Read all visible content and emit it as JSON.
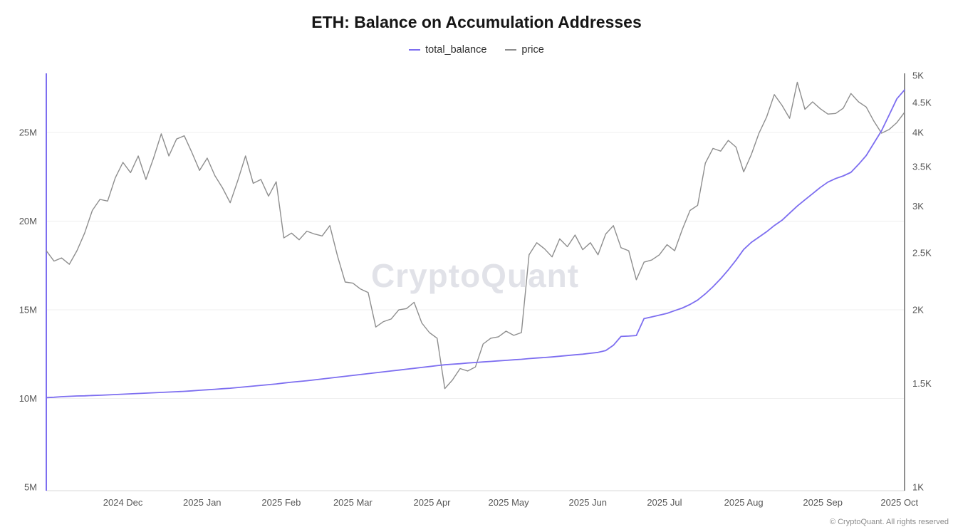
{
  "chart_data": {
    "type": "line",
    "title": "ETH: Balance on Accumulation Addresses",
    "watermark": "CryptoQuant",
    "footer": "© CryptoQuant. All rights reserved",
    "legend_position": "top-center",
    "grid": "horizontal-only",
    "x_start_date": "2024-11-01",
    "x_interval_days": 3,
    "x_ticks": [
      {
        "date": "2024-12-01",
        "label": "2024 Dec"
      },
      {
        "date": "2025-01-01",
        "label": "2025 Jan"
      },
      {
        "date": "2025-02-01",
        "label": "2025 Feb"
      },
      {
        "date": "2025-03-01",
        "label": "2025 Mar"
      },
      {
        "date": "2025-04-01",
        "label": "2025 Apr"
      },
      {
        "date": "2025-05-01",
        "label": "2025 May"
      },
      {
        "date": "2025-06-01",
        "label": "2025 Jun"
      },
      {
        "date": "2025-07-01",
        "label": "2025 Jul"
      },
      {
        "date": "2025-08-01",
        "label": "2025 Aug"
      },
      {
        "date": "2025-09-01",
        "label": "2025 Sep"
      },
      {
        "date": "2025-10-01",
        "label": "2025 Oct"
      }
    ],
    "left_axis": {
      "scale": "linear",
      "unit": "M ETH",
      "range": [
        5,
        28.3
      ],
      "ticks": [
        {
          "value": 5,
          "label": "5M"
        },
        {
          "value": 10,
          "label": "10M"
        },
        {
          "value": 15,
          "label": "15M"
        },
        {
          "value": 20,
          "label": "20M"
        },
        {
          "value": 25,
          "label": "25M"
        }
      ]
    },
    "right_axis": {
      "scale": "log",
      "unit": "USD",
      "range": [
        1000,
        5000
      ],
      "ticks": [
        {
          "value": 1000,
          "label": "1K"
        },
        {
          "value": 1500,
          "label": "1.5K"
        },
        {
          "value": 2000,
          "label": "2K"
        },
        {
          "value": 2500,
          "label": "2.5K"
        },
        {
          "value": 3000,
          "label": "3K"
        },
        {
          "value": 3500,
          "label": "3.5K"
        },
        {
          "value": 4000,
          "label": "4K"
        },
        {
          "value": 4500,
          "label": "4.5K"
        },
        {
          "value": 5000,
          "label": "5K"
        }
      ]
    },
    "series": [
      {
        "name": "total_balance",
        "axis": "left",
        "color": "#7d6ef0",
        "unit": "M",
        "values": [
          10.05,
          10.07,
          10.1,
          10.12,
          10.14,
          10.15,
          10.17,
          10.18,
          10.2,
          10.22,
          10.24,
          10.26,
          10.28,
          10.3,
          10.32,
          10.34,
          10.36,
          10.38,
          10.4,
          10.43,
          10.46,
          10.49,
          10.52,
          10.55,
          10.58,
          10.62,
          10.66,
          10.7,
          10.74,
          10.78,
          10.82,
          10.87,
          10.92,
          10.96,
          11.0,
          11.05,
          11.1,
          11.15,
          11.2,
          11.25,
          11.3,
          11.35,
          11.4,
          11.45,
          11.5,
          11.55,
          11.6,
          11.65,
          11.7,
          11.75,
          11.8,
          11.85,
          11.9,
          11.93,
          11.96,
          12.0,
          12.03,
          12.06,
          12.09,
          12.12,
          12.15,
          12.18,
          12.21,
          12.25,
          12.28,
          12.31,
          12.34,
          12.38,
          12.42,
          12.46,
          12.5,
          12.55,
          12.6,
          12.7,
          13.0,
          13.5,
          13.52,
          13.55,
          14.5,
          14.6,
          14.7,
          14.8,
          14.95,
          15.1,
          15.3,
          15.55,
          15.9,
          16.3,
          16.75,
          17.25,
          17.8,
          18.4,
          18.8,
          19.1,
          19.4,
          19.75,
          20.05,
          20.45,
          20.85,
          21.2,
          21.55,
          21.9,
          22.2,
          22.4,
          22.55,
          22.75,
          23.2,
          23.7,
          24.4,
          25.1,
          26.0,
          26.9,
          27.4
        ]
      },
      {
        "name": "price",
        "axis": "right",
        "color": "#8e8e8e",
        "unit": "USD",
        "values": [
          2520,
          2420,
          2450,
          2390,
          2520,
          2700,
          2950,
          3080,
          3060,
          3350,
          3560,
          3420,
          3650,
          3330,
          3620,
          3980,
          3650,
          3900,
          3950,
          3700,
          3450,
          3620,
          3380,
          3220,
          3040,
          3320,
          3650,
          3280,
          3330,
          3120,
          3300,
          2650,
          2700,
          2630,
          2720,
          2690,
          2670,
          2780,
          2470,
          2230,
          2220,
          2170,
          2140,
          1870,
          1910,
          1930,
          2000,
          2010,
          2060,
          1900,
          1830,
          1790,
          1470,
          1520,
          1590,
          1575,
          1600,
          1750,
          1790,
          1800,
          1840,
          1810,
          1830,
          2480,
          2600,
          2540,
          2460,
          2640,
          2560,
          2680,
          2530,
          2600,
          2480,
          2690,
          2780,
          2550,
          2520,
          2250,
          2410,
          2430,
          2480,
          2580,
          2520,
          2740,
          2950,
          3010,
          3550,
          3760,
          3720,
          3880,
          3780,
          3430,
          3670,
          3990,
          4250,
          4640,
          4450,
          4230,
          4870,
          4380,
          4510,
          4390,
          4300,
          4310,
          4400,
          4660,
          4510,
          4420,
          4180,
          3990,
          4050,
          4160,
          4330
        ]
      }
    ]
  }
}
